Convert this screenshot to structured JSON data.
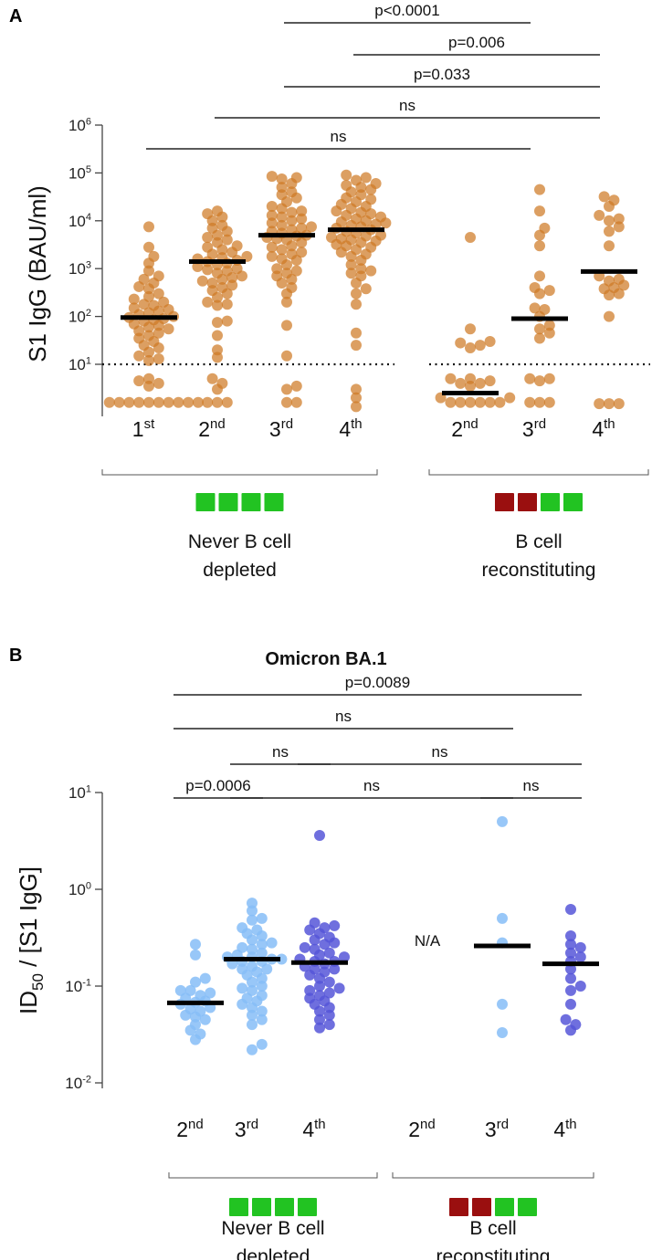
{
  "chart_data": [
    {
      "type": "scatter",
      "panel": "A",
      "title": "",
      "ylabel": "S1 IgG (BAU/ml)",
      "yscale": "log",
      "ylim": [
        1,
        1000000
      ],
      "yticks": [
        {
          "base": "10",
          "sup": "1",
          "value": 10
        },
        {
          "base": "10",
          "sup": "2",
          "value": 100
        },
        {
          "base": "10",
          "sup": "3",
          "value": 1000
        },
        {
          "base": "10",
          "sup": "4",
          "value": 10000
        },
        {
          "base": "10",
          "sup": "5",
          "value": 100000
        },
        {
          "base": "10",
          "sup": "6",
          "value": 1000000
        }
      ],
      "threshold": 10,
      "color": "#cf7a26",
      "groups": [
        {
          "label": "Never B cell",
          "label2": "depleted",
          "squares": [
            "#22c322",
            "#22c322",
            "#22c322",
            "#22c322"
          ]
        },
        {
          "label": "B cell",
          "label2": "reconstituting",
          "squares": [
            "#9a0f0f",
            "#9a0f0f",
            "#22c322",
            "#22c322"
          ]
        }
      ],
      "series": [
        {
          "name": "1st",
          "group": 0,
          "cat": {
            "base": "1",
            "sup": "st"
          },
          "median": 95,
          "values": [
            7500,
            2800,
            1800,
            1300,
            900,
            700,
            600,
            500,
            420,
            380,
            300,
            260,
            230,
            200,
            180,
            170,
            150,
            140,
            130,
            120,
            110,
            100,
            95,
            90,
            85,
            80,
            70,
            65,
            60,
            55,
            50,
            45,
            40,
            35,
            30,
            25,
            22,
            18,
            15,
            13,
            12,
            5,
            4.5,
            4,
            3.5,
            1.6,
            1.6,
            1.6,
            1.6,
            1.6,
            1.6,
            1.6,
            1.6,
            1.6,
            1.6
          ]
        },
        {
          "name": "2nd",
          "group": 0,
          "cat": {
            "base": "2",
            "sup": "nd"
          },
          "median": 1400,
          "values": [
            16000,
            14000,
            12000,
            10000,
            8000,
            7000,
            6000,
            5000,
            4500,
            4000,
            3500,
            3000,
            2800,
            2500,
            2200,
            2000,
            1800,
            1700,
            1600,
            1500,
            1400,
            1300,
            1200,
            1100,
            1000,
            950,
            900,
            800,
            700,
            650,
            600,
            550,
            500,
            450,
            400,
            350,
            300,
            250,
            200,
            180,
            170,
            80,
            75,
            40,
            20,
            14,
            5,
            4,
            3,
            1.6,
            1.6,
            1.6
          ]
        },
        {
          "name": "3rd",
          "group": 0,
          "cat": {
            "base": "3",
            "sup": "rd"
          },
          "median": 5000,
          "values": [
            85000,
            80000,
            75000,
            60000,
            50000,
            40000,
            35000,
            30000,
            25000,
            20000,
            18000,
            16000,
            15000,
            13000,
            12000,
            11000,
            10000,
            9000,
            8000,
            7500,
            7000,
            6500,
            6000,
            5500,
            5000,
            4800,
            4500,
            4200,
            4000,
            3500,
            3000,
            2800,
            2500,
            2200,
            2000,
            1800,
            1600,
            1500,
            1200,
            1000,
            900,
            800,
            700,
            600,
            500,
            400,
            300,
            200,
            65,
            15,
            3.5,
            3,
            1.6,
            1.6
          ]
        },
        {
          "name": "4th",
          "group": 0,
          "cat": {
            "base": "4",
            "sup": "th"
          },
          "median": 6500,
          "values": [
            90000,
            80000,
            70000,
            60000,
            55000,
            50000,
            45000,
            40000,
            35000,
            30000,
            28000,
            25000,
            22000,
            20000,
            18000,
            16000,
            15000,
            14000,
            13000,
            12000,
            11000,
            10000,
            9500,
            9000,
            8500,
            8000,
            7500,
            7000,
            6500,
            6000,
            5500,
            5000,
            4800,
            4500,
            4200,
            4000,
            3800,
            3500,
            3200,
            3000,
            2800,
            2500,
            2200,
            2000,
            1800,
            1500,
            1200,
            1000,
            900,
            800,
            700,
            500,
            380,
            300,
            180,
            45,
            25,
            3,
            2,
            1.3
          ]
        },
        {
          "name": "2nd",
          "group": 1,
          "cat": {
            "base": "2",
            "sup": "nd"
          },
          "median": 2.5,
          "values": [
            4500,
            55,
            30,
            28,
            25,
            22,
            5,
            5,
            4.5,
            4,
            4,
            3.5,
            2,
            2,
            1.6,
            1.6,
            1.6,
            1.6,
            1.6,
            1.6
          ]
        },
        {
          "name": "3rd",
          "group": 1,
          "cat": {
            "base": "3",
            "sup": "rd"
          },
          "median": 90,
          "values": [
            45000,
            16000,
            7000,
            5000,
            3000,
            700,
            400,
            350,
            300,
            150,
            140,
            100,
            65,
            55,
            45,
            35,
            5,
            5,
            4.5,
            1.6,
            1.6,
            1.6
          ]
        },
        {
          "name": "4th",
          "group": 1,
          "cat": {
            "base": "4",
            "sup": "th"
          },
          "median": 870,
          "values": [
            32000,
            27000,
            20000,
            13000,
            11000,
            10000,
            7500,
            6000,
            3000,
            700,
            600,
            550,
            450,
            400,
            380,
            300,
            280,
            100,
            1.5,
            1.5,
            1.5
          ]
        }
      ],
      "comparisons": [
        {
          "from": 2,
          "to": 5,
          "label": "p<0.0001"
        },
        {
          "from": 3,
          "to": 6,
          "label": "p=0.006"
        },
        {
          "from": 2,
          "to": 6,
          "label": "p=0.033"
        },
        {
          "from": 1,
          "to": 6,
          "label": "ns"
        },
        {
          "from": 0,
          "to": 5,
          "label": "ns"
        }
      ]
    },
    {
      "type": "scatter",
      "panel": "B",
      "title": "Omicron BA.1",
      "ylabel": {
        "pre": "ID",
        "sub": "50",
        "post": " / [S1 IgG]"
      },
      "yscale": "log",
      "ylim": [
        0.01,
        10
      ],
      "yticks": [
        {
          "base": "10",
          "sup": "-2",
          "value": 0.01
        },
        {
          "base": "10",
          "sup": "-1",
          "value": 0.1
        },
        {
          "base": "10",
          "sup": "0",
          "value": 1
        },
        {
          "base": "10",
          "sup": "1",
          "value": 10
        }
      ],
      "groups": [
        {
          "label": "Never B cell",
          "label2": "depleted",
          "squares": [
            "#22c322",
            "#22c322",
            "#22c322",
            "#22c322"
          ]
        },
        {
          "label": "B cell",
          "label2": "reconstituting",
          "squares": [
            "#9a0f0f",
            "#9a0f0f",
            "#22c322",
            "#22c322"
          ]
        }
      ],
      "series": [
        {
          "name": "2nd",
          "group": 0,
          "cat": {
            "base": "2",
            "sup": "nd"
          },
          "color": "#86bdf7",
          "median": 0.067,
          "values": [
            0.27,
            0.21,
            0.12,
            0.11,
            0.09,
            0.09,
            0.085,
            0.08,
            0.075,
            0.07,
            0.068,
            0.065,
            0.06,
            0.058,
            0.055,
            0.05,
            0.048,
            0.045,
            0.04,
            0.035,
            0.032,
            0.028
          ]
        },
        {
          "name": "3rd",
          "group": 0,
          "cat": {
            "base": "3",
            "sup": "rd"
          },
          "color": "#86bdf7",
          "median": 0.19,
          "values": [
            0.72,
            0.6,
            0.5,
            0.48,
            0.4,
            0.38,
            0.35,
            0.33,
            0.3,
            0.28,
            0.27,
            0.25,
            0.24,
            0.22,
            0.21,
            0.2,
            0.2,
            0.19,
            0.19,
            0.18,
            0.18,
            0.17,
            0.16,
            0.15,
            0.15,
            0.14,
            0.13,
            0.12,
            0.11,
            0.1,
            0.095,
            0.09,
            0.08,
            0.075,
            0.07,
            0.065,
            0.06,
            0.055,
            0.05,
            0.045,
            0.04,
            0.025,
            0.022
          ]
        },
        {
          "name": "4th",
          "group": 0,
          "cat": {
            "base": "4",
            "sup": "th"
          },
          "color": "#5656d8",
          "median": 0.175,
          "values": [
            3.6,
            0.45,
            0.42,
            0.4,
            0.38,
            0.35,
            0.32,
            0.3,
            0.28,
            0.27,
            0.25,
            0.24,
            0.22,
            0.21,
            0.2,
            0.19,
            0.18,
            0.18,
            0.17,
            0.16,
            0.15,
            0.15,
            0.14,
            0.13,
            0.12,
            0.11,
            0.1,
            0.095,
            0.09,
            0.085,
            0.08,
            0.075,
            0.07,
            0.065,
            0.06,
            0.055,
            0.05,
            0.045,
            0.04,
            0.037
          ]
        },
        {
          "name": "2nd",
          "group": 1,
          "cat": {
            "base": "2",
            "sup": "nd"
          },
          "color": "#86bdf7",
          "median": null,
          "na_label": "N/A",
          "values": []
        },
        {
          "name": "3rd",
          "group": 1,
          "cat": {
            "base": "3",
            "sup": "rd"
          },
          "color": "#86bdf7",
          "median": 0.26,
          "values": [
            5.0,
            0.5,
            0.28,
            0.065,
            0.033
          ]
        },
        {
          "name": "4th",
          "group": 1,
          "cat": {
            "base": "4",
            "sup": "th"
          },
          "color": "#5656d8",
          "median": 0.17,
          "values": [
            0.62,
            0.33,
            0.27,
            0.25,
            0.22,
            0.2,
            0.18,
            0.15,
            0.12,
            0.1,
            0.09,
            0.065,
            0.045,
            0.04,
            0.035
          ]
        }
      ],
      "comparisons": [
        {
          "from": 0,
          "to": 5,
          "label": "p=0.0089"
        },
        {
          "from": 0,
          "to": 4,
          "label": "ns"
        },
        {
          "from": 1,
          "to": 2,
          "label": "ns"
        },
        {
          "from": 2,
          "to": 5,
          "label": "ns"
        },
        {
          "from": 0,
          "to": 1,
          "label": "p=0.0006"
        },
        {
          "from": 1,
          "to": 4,
          "label": "ns"
        },
        {
          "from": 4,
          "to": 5,
          "label": "ns"
        }
      ]
    }
  ]
}
